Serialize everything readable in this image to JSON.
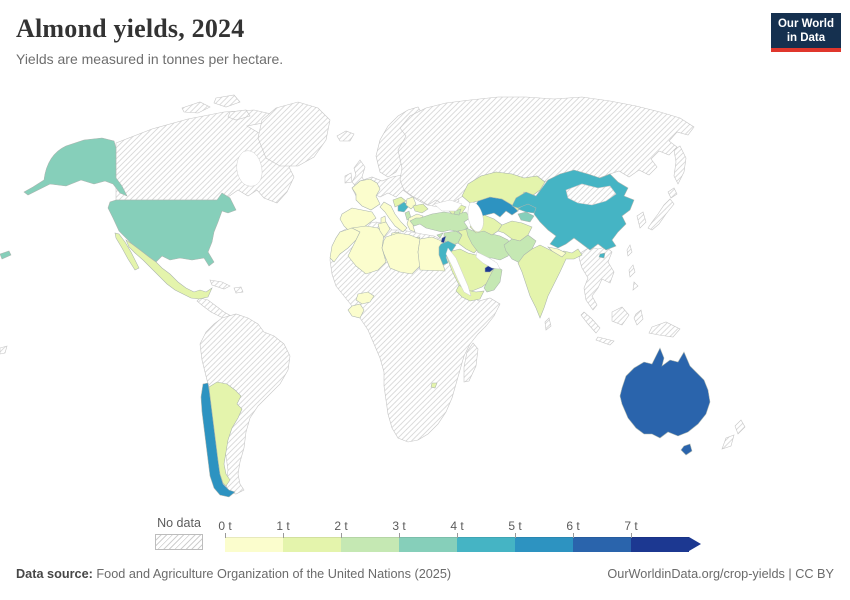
{
  "header": {
    "title": "Almond yields, 2024",
    "subtitle": "Yields are measured in tonnes per hectare.",
    "logo": {
      "line1": "Our World",
      "line2": "in Data",
      "bg_color": "#15304f",
      "accent_color": "#e0362c"
    }
  },
  "legend": {
    "no_data_label": "No data",
    "ticks": [
      "0 t",
      "1 t",
      "2 t",
      "3 t",
      "4 t",
      "5 t",
      "6 t",
      "7 t"
    ],
    "colors": [
      "#fbfdcd",
      "#e4f4ac",
      "#c5e8b3",
      "#86cfba",
      "#45b4c4",
      "#2d93c1",
      "#2a64ac",
      "#1c3891"
    ]
  },
  "footer": {
    "source_label": "Data source:",
    "source_text": "Food and Agriculture Organization of the United Nations (2025)",
    "link_text": "OurWorldinData.org/crop-yields | CC BY"
  },
  "chart_data": {
    "type": "choropleth_map",
    "title": "Almond yields, 2024",
    "subtitle": "Yields are measured in tonnes per hectare.",
    "unit": "tonnes per hectare",
    "year": 2024,
    "no_data_style": "diagonal hatching",
    "legend_bins": [
      {
        "range": "0-1 t",
        "color": "#fbfdcd"
      },
      {
        "range": "1-2 t",
        "color": "#e4f4ac"
      },
      {
        "range": "2-3 t",
        "color": "#c5e8b3"
      },
      {
        "range": "3-4 t",
        "color": "#86cfba"
      },
      {
        "range": "4-5 t",
        "color": "#45b4c4"
      },
      {
        "range": "5-6 t",
        "color": "#2d93c1"
      },
      {
        "range": "6-7 t",
        "color": "#2a64ac"
      },
      {
        "range": "7+ t",
        "color": "#1c3891"
      }
    ],
    "countries": [
      {
        "name": "United States",
        "value_band": "3-4 t"
      },
      {
        "name": "Mexico",
        "value_band": "1-2 t"
      },
      {
        "name": "Chile",
        "value_band": "5-6 t"
      },
      {
        "name": "Argentina",
        "value_band": "1-2 t"
      },
      {
        "name": "Portugal",
        "value_band": "0-1 t"
      },
      {
        "name": "Spain",
        "value_band": "0-1 t"
      },
      {
        "name": "France",
        "value_band": "0-1 t"
      },
      {
        "name": "Italy",
        "value_band": "0-1 t"
      },
      {
        "name": "Croatia",
        "value_band": "1-2 t"
      },
      {
        "name": "Bosnia and Herzegovina",
        "value_band": "4-5 t"
      },
      {
        "name": "Serbia",
        "value_band": "0-1 t"
      },
      {
        "name": "Albania",
        "value_band": "2-3 t"
      },
      {
        "name": "Bulgaria",
        "value_band": "1-2 t"
      },
      {
        "name": "Greece",
        "value_band": "0-1 t"
      },
      {
        "name": "Morocco",
        "value_band": "0-1 t"
      },
      {
        "name": "Algeria",
        "value_band": "0-1 t"
      },
      {
        "name": "Tunisia",
        "value_band": "0-1 t"
      },
      {
        "name": "Libya",
        "value_band": "0-1 t"
      },
      {
        "name": "Egypt",
        "value_band": "0-1 t"
      },
      {
        "name": "Burkina Faso",
        "value_band": "0-1 t"
      },
      {
        "name": "Cote d'Ivoire",
        "value_band": "0-1 t"
      },
      {
        "name": "Eswatini",
        "value_band": "1-2 t"
      },
      {
        "name": "Turkey",
        "value_band": "2-3 t"
      },
      {
        "name": "Cyprus",
        "value_band": "2-3 t"
      },
      {
        "name": "Syria",
        "value_band": "2-3 t"
      },
      {
        "name": "Lebanon",
        "value_band": "7+ t"
      },
      {
        "name": "Israel",
        "value_band": "4-5 t"
      },
      {
        "name": "Jordan",
        "value_band": "4-5 t"
      },
      {
        "name": "Iraq",
        "value_band": "1-2 t"
      },
      {
        "name": "Saudi Arabia",
        "value_band": "1-2 t"
      },
      {
        "name": "Yemen",
        "value_band": "1-2 t"
      },
      {
        "name": "Oman",
        "value_band": "2-3 t"
      },
      {
        "name": "United Arab Emirates",
        "value_band": "7+ t"
      },
      {
        "name": "Iran",
        "value_band": "2-3 t"
      },
      {
        "name": "Georgia",
        "value_band": "1-2 t"
      },
      {
        "name": "Armenia",
        "value_band": "2-3 t"
      },
      {
        "name": "Azerbaijan",
        "value_band": "1-2 t"
      },
      {
        "name": "Kazakhstan",
        "value_band": "1-2 t"
      },
      {
        "name": "Uzbekistan",
        "value_band": "5-6 t"
      },
      {
        "name": "Turkmenistan",
        "value_band": "1-2 t"
      },
      {
        "name": "Kyrgyzstan",
        "value_band": "4-5 t"
      },
      {
        "name": "Tajikistan",
        "value_band": "3-4 t"
      },
      {
        "name": "Afghanistan",
        "value_band": "1-2 t"
      },
      {
        "name": "Pakistan",
        "value_band": "2-3 t"
      },
      {
        "name": "India",
        "value_band": "1-2 t"
      },
      {
        "name": "Nepal",
        "value_band": "0-1 t"
      },
      {
        "name": "China",
        "value_band": "4-5 t"
      },
      {
        "name": "Australia",
        "value_band": "6-7 t"
      }
    ]
  }
}
